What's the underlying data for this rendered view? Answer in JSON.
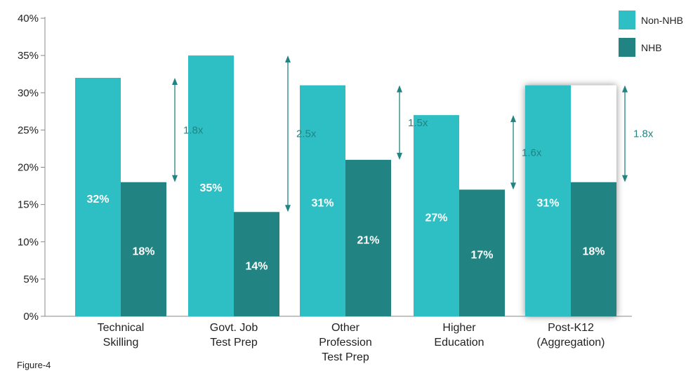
{
  "chart_data": {
    "type": "bar",
    "categories": [
      [
        "Technical",
        "Skilling"
      ],
      [
        "Govt. Job",
        "Test Prep"
      ],
      [
        "Other",
        "Profession",
        "Test Prep"
      ],
      [
        "Higher",
        "Education"
      ],
      [
        "Post-K12",
        "(Aggregation)"
      ]
    ],
    "series": [
      {
        "name": "Non-NHB",
        "color": "#2DBFC4",
        "values": [
          32,
          35,
          31,
          27,
          31
        ],
        "labels": [
          "32%",
          "35%",
          "31%",
          "27%",
          "31%"
        ]
      },
      {
        "name": "NHB",
        "color": "#218482",
        "values": [
          18,
          14,
          21,
          17,
          18
        ],
        "labels": [
          "18%",
          "14%",
          "21%",
          "17%",
          "18%"
        ]
      }
    ],
    "ratios": [
      "1.8x",
      "2.5x",
      "1.5x",
      "1.6x",
      "1.8x"
    ],
    "ylim": [
      0,
      40
    ],
    "yticks": [
      0,
      5,
      10,
      15,
      20,
      25,
      30,
      35,
      40
    ],
    "ytick_labels": [
      "0%",
      "5%",
      "10%",
      "15%",
      "20%",
      "25%",
      "30%",
      "35%",
      "40%"
    ],
    "highlighted_category_index": 4,
    "legend_position": "top-right",
    "grid": false,
    "annotation_color": "#218482",
    "axis_color": "#888888",
    "text_color": "#222222"
  },
  "figure_label": "Figure-4"
}
